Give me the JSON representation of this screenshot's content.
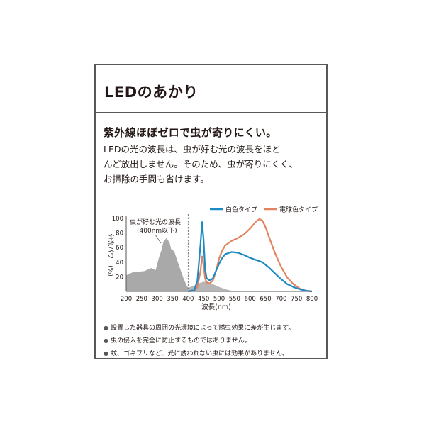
{
  "card": {
    "title": "LEDのあかり",
    "headline": "紫外線ほぼゼロで虫が寄りにくい。",
    "description_lines": [
      "LEDの光の波長は、虫が好む光の波長をほと",
      "んど放出しません。そのため、虫が寄りにくく、",
      "お掃除の手間も省けます。"
    ],
    "notes": [
      "設置した器具の周囲の光環境によって誘虫効果に差が生じます。",
      "虫の侵入を完全に防止するものではありません。",
      "蚊、ゴキブリなど、光に誘われない虫には効果がありません。"
    ],
    "bullet_glyph": "●"
  },
  "chart_data": {
    "type": "area",
    "ylabel": "分光パワー(%)",
    "xlabel": "波長(nm)",
    "xlim": [
      200,
      800
    ],
    "ylim": [
      0,
      100
    ],
    "xticks": [
      200,
      250,
      300,
      350,
      400,
      450,
      500,
      550,
      600,
      650,
      700,
      750,
      800
    ],
    "yticks": [
      20,
      40,
      60,
      80,
      100
    ],
    "legend": [
      "白色タイプ",
      "電球色タイプ"
    ],
    "legend_placement": "top",
    "annotation": {
      "lines": [
        "虫が好む光の波長",
        "(400nm以下)"
      ],
      "divider_x": 400
    },
    "colors": {
      "insect": "#a9a9aa",
      "white_type": "#1c8ac4",
      "bulb_type": "#e3845f",
      "axis": "#595757"
    },
    "insect_sensitivity": {
      "x": [
        200,
        220,
        240,
        260,
        280,
        295,
        305,
        315,
        320,
        330,
        340,
        345,
        355,
        365,
        375,
        385,
        395,
        400
      ],
      "y": [
        22,
        26,
        27,
        28,
        32,
        29,
        45,
        58,
        68,
        73,
        67,
        58,
        55,
        42,
        30,
        18,
        8,
        5
      ]
    },
    "insect_sensitivity_visible": {
      "x": [
        400,
        420,
        440,
        460,
        480,
        500,
        520,
        540,
        550
      ],
      "y": [
        5,
        8,
        12,
        14,
        10,
        6,
        3,
        1,
        0
      ]
    },
    "series": [
      {
        "name": "白色タイプ",
        "x": [
          400,
          420,
          430,
          440,
          445,
          450,
          455,
          460,
          470,
          480,
          490,
          500,
          510,
          520,
          540,
          560,
          580,
          600,
          620,
          640,
          660,
          680,
          700,
          720,
          740,
          760,
          780,
          800
        ],
        "y": [
          0,
          2,
          15,
          65,
          95,
          70,
          30,
          18,
          15,
          18,
          28,
          38,
          46,
          51,
          54,
          53,
          50,
          46,
          43,
          40,
          33,
          25,
          17,
          10,
          6,
          3,
          1,
          0
        ]
      },
      {
        "name": "電球色タイプ",
        "x": [
          400,
          420,
          430,
          440,
          445,
          450,
          455,
          460,
          470,
          480,
          490,
          500,
          510,
          520,
          540,
          560,
          580,
          600,
          620,
          630,
          640,
          650,
          660,
          680,
          700,
          720,
          740,
          760,
          780,
          800
        ],
        "y": [
          0,
          1,
          6,
          28,
          48,
          35,
          18,
          12,
          11,
          15,
          28,
          45,
          56,
          63,
          69,
          73,
          78,
          86,
          96,
          99,
          97,
          88,
          76,
          53,
          34,
          19,
          10,
          4,
          1,
          0
        ]
      }
    ]
  }
}
